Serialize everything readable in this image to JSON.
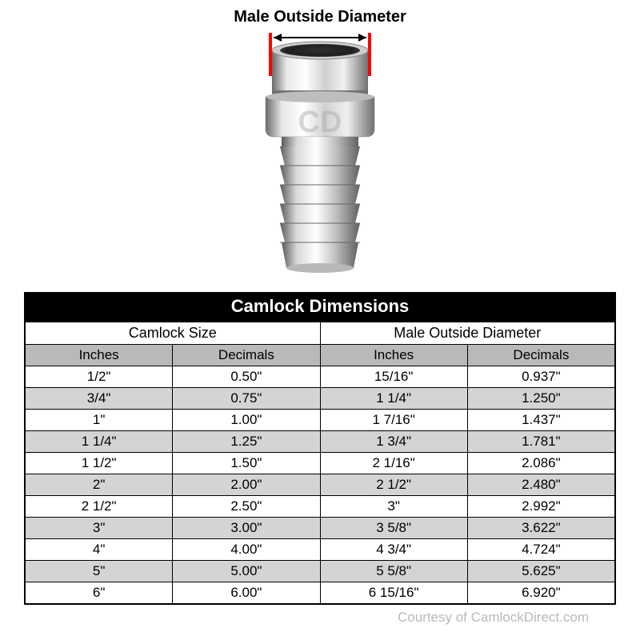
{
  "diagram": {
    "label": "Male Outside Diameter",
    "marker_color": "#ff0000",
    "arrow_color": "#000000",
    "metal_light": "#f2f2f2",
    "metal_mid": "#c8c8c8",
    "metal_dark": "#8a8a8a",
    "metal_shadow": "#555555",
    "watermark_color": "#b0b0b0"
  },
  "table": {
    "title": "Camlock Dimensions",
    "group_headers": [
      "Camlock Size",
      "Male Outside Diameter"
    ],
    "sub_headers": [
      "Inches",
      "Decimals",
      "Inches",
      "Decimals"
    ],
    "title_bg": "#000000",
    "title_color": "#ffffff",
    "subheader_bg": "#b9b9b9",
    "row_odd_bg": "#ffffff",
    "row_even_bg": "#d4d4d4",
    "border_color": "#000000",
    "rows": [
      [
        "1/2\"",
        "0.50\"",
        "15/16\"",
        "0.937\""
      ],
      [
        "3/4\"",
        "0.75\"",
        "1 1/4\"",
        "1.250\""
      ],
      [
        "1\"",
        "1.00\"",
        "1 7/16\"",
        "1.437\""
      ],
      [
        "1 1/4\"",
        "1.25\"",
        "1 3/4\"",
        "1.781\""
      ],
      [
        "1 1/2\"",
        "1.50\"",
        "2 1/16\"",
        "2.086\""
      ],
      [
        "2\"",
        "2.00\"",
        "2 1/2\"",
        "2.480\""
      ],
      [
        "2 1/2\"",
        "2.50\"",
        "3\"",
        "2.992\""
      ],
      [
        "3\"",
        "3.00\"",
        "3 5/8\"",
        "3.622\""
      ],
      [
        "4\"",
        "4.00\"",
        "4 3/4\"",
        "4.724\""
      ],
      [
        "5\"",
        "5.00\"",
        "5 5/8\"",
        "5.625\""
      ],
      [
        "6\"",
        "6.00\"",
        "6 15/16\"",
        "6.920\""
      ]
    ]
  },
  "courtesy": "Courtesy of CamlockDirect.com"
}
